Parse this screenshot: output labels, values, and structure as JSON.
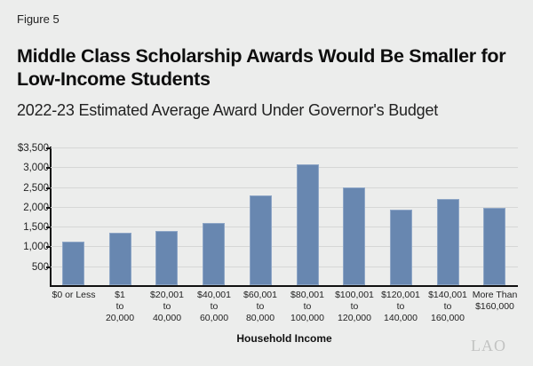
{
  "figure_label": "Figure 5",
  "title": "Middle Class Scholarship Awards Would Be Smaller for Low-Income Students",
  "subtitle": "2022-23 Estimated Average Award Under Governor's Budget",
  "logo": "LAO",
  "colors": {
    "bar": "#6887b0",
    "background": "#ecedec",
    "grid": "#d6d7d6"
  },
  "chart_data": {
    "type": "bar",
    "title": "Middle Class Scholarship Awards Would Be Smaller for Low-Income Students",
    "subtitle": "2022-23 Estimated Average Award Under Governor's Budget",
    "xlabel": "Household Income",
    "ylabel": "",
    "ylim": [
      0,
      3500
    ],
    "yticks": [
      500,
      1000,
      1500,
      2000,
      2500,
      3000,
      3500
    ],
    "ytick_labels": [
      "500",
      "1,000",
      "1,500",
      "2,000",
      "2,500",
      "3,000",
      "$3,500"
    ],
    "grid": true,
    "legend": null,
    "categories": [
      "$0 or Less",
      "$1\nto\n20,000",
      "$20,001\nto\n40,000",
      "$40,001\nto\n60,000",
      "$60,001\nto\n80,000",
      "$80,001\nto\n100,000",
      "$100,001\nto\n120,000",
      "$120,001\nto\n140,000",
      "$140,001\nto\n160,000",
      "More Than\n$160,000"
    ],
    "values": [
      1130,
      1350,
      1400,
      1600,
      2280,
      3070,
      2500,
      1920,
      2190,
      1980
    ]
  }
}
